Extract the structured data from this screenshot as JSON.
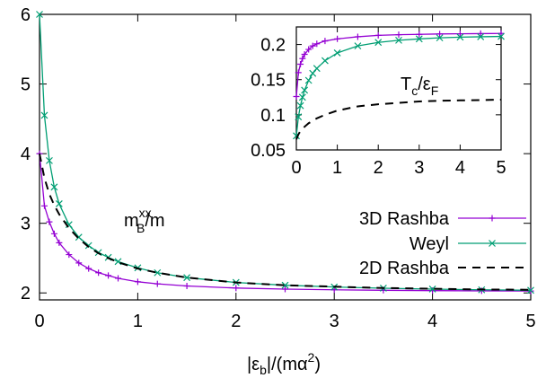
{
  "chart_data": [
    {
      "type": "line",
      "role": "main",
      "xlabel": {
        "base": "|ε",
        "sub": "b",
        "mid": "|/(mα",
        "sup": "2",
        "end": ")"
      },
      "annotation": {
        "base": "m",
        "sup": "xx",
        "sub": "B",
        "end": "/m"
      },
      "xlim": [
        0,
        5
      ],
      "ylim": [
        1.9,
        6
      ],
      "xticks": [
        0,
        1,
        2,
        3,
        4,
        5
      ],
      "xtick_labels": [
        "0",
        "1",
        "2",
        "3",
        "4",
        "5"
      ],
      "yticks": [
        2,
        3,
        4,
        5,
        6
      ],
      "ytick_labels": [
        "2",
        "3",
        "4",
        "5",
        "6"
      ],
      "grid": false,
      "legend_position": "lower-right",
      "series": [
        {
          "name": "3D Rashba",
          "color": "#9400d3",
          "marker": "plus",
          "x": [
            0.0,
            0.05,
            0.1,
            0.15,
            0.2,
            0.3,
            0.4,
            0.5,
            0.6,
            0.7,
            0.8,
            1.0,
            1.2,
            1.5,
            2.0,
            2.5,
            3.0,
            3.5,
            4.0,
            4.5,
            5.0
          ],
          "y": [
            4.0,
            3.25,
            3.02,
            2.85,
            2.72,
            2.55,
            2.43,
            2.35,
            2.29,
            2.25,
            2.21,
            2.16,
            2.13,
            2.1,
            2.07,
            2.055,
            2.045,
            2.038,
            2.033,
            2.03,
            2.027
          ]
        },
        {
          "name": "Weyl",
          "color": "#009e73",
          "marker": "x",
          "x": [
            0.0,
            0.05,
            0.1,
            0.15,
            0.2,
            0.3,
            0.4,
            0.5,
            0.6,
            0.7,
            0.8,
            1.0,
            1.2,
            1.5,
            2.0,
            2.5,
            3.0,
            3.5,
            4.0,
            4.5,
            5.0
          ],
          "y": [
            6.0,
            4.55,
            3.9,
            3.52,
            3.28,
            2.98,
            2.8,
            2.68,
            2.58,
            2.51,
            2.45,
            2.36,
            2.29,
            2.22,
            2.15,
            2.11,
            2.085,
            2.068,
            2.055,
            2.045,
            2.038
          ]
        },
        {
          "name": "2D Rashba",
          "color": "#000000",
          "marker": "none",
          "dash": true,
          "x": [
            0.0,
            0.05,
            0.1,
            0.15,
            0.2,
            0.3,
            0.4,
            0.5,
            0.6,
            0.7,
            0.8,
            1.0,
            1.2,
            1.5,
            2.0,
            2.5,
            3.0,
            3.5,
            4.0,
            4.5,
            5.0
          ],
          "y": [
            4.0,
            3.65,
            3.42,
            3.26,
            3.13,
            2.93,
            2.78,
            2.66,
            2.57,
            2.5,
            2.44,
            2.35,
            2.29,
            2.22,
            2.15,
            2.11,
            2.09,
            2.07,
            2.06,
            2.05,
            2.045
          ]
        }
      ]
    },
    {
      "type": "line",
      "role": "inset",
      "annotation": {
        "base": "T",
        "sub": "c",
        "mid": "/ε",
        "sub2": "F"
      },
      "xlim": [
        0,
        5
      ],
      "ylim": [
        0.05,
        0.225
      ],
      "xticks": [
        0,
        1,
        2,
        3,
        4,
        5
      ],
      "xtick_labels": [
        "0",
        "1",
        "2",
        "3",
        "4",
        "5"
      ],
      "yticks": [
        0.05,
        0.1,
        0.15,
        0.2
      ],
      "ytick_labels": [
        "0.05",
        "0.1",
        "0.15",
        "0.2"
      ],
      "grid": false,
      "series": [
        {
          "name": "3D Rashba",
          "color": "#9400d3",
          "marker": "plus",
          "x": [
            0.0,
            0.05,
            0.1,
            0.15,
            0.2,
            0.3,
            0.4,
            0.5,
            0.7,
            1.0,
            1.5,
            2.0,
            2.5,
            3.0,
            3.5,
            4.0,
            4.5,
            5.0
          ],
          "y": [
            0.126,
            0.16,
            0.172,
            0.18,
            0.186,
            0.193,
            0.198,
            0.201,
            0.205,
            0.208,
            0.211,
            0.213,
            0.214,
            0.2145,
            0.215,
            0.2153,
            0.2155,
            0.2157
          ]
        },
        {
          "name": "Weyl",
          "color": "#009e73",
          "marker": "x",
          "x": [
            0.0,
            0.05,
            0.1,
            0.15,
            0.2,
            0.3,
            0.4,
            0.5,
            0.7,
            1.0,
            1.5,
            2.0,
            2.5,
            3.0,
            3.5,
            4.0,
            4.5,
            5.0
          ],
          "y": [
            0.07,
            0.097,
            0.113,
            0.125,
            0.135,
            0.149,
            0.159,
            0.166,
            0.177,
            0.188,
            0.198,
            0.203,
            0.206,
            0.208,
            0.2095,
            0.2105,
            0.211,
            0.2115
          ]
        },
        {
          "name": "2D Rashba",
          "color": "#000000",
          "marker": "none",
          "dash": true,
          "x": [
            0.0,
            0.05,
            0.1,
            0.2,
            0.3,
            0.5,
            0.7,
            1.0,
            1.5,
            2.0,
            2.5,
            3.0,
            3.5,
            4.0,
            4.5,
            5.0
          ],
          "y": [
            0.065,
            0.072,
            0.077,
            0.083,
            0.088,
            0.095,
            0.1,
            0.106,
            0.112,
            0.115,
            0.117,
            0.119,
            0.12,
            0.1205,
            0.121,
            0.1215
          ]
        }
      ]
    }
  ]
}
